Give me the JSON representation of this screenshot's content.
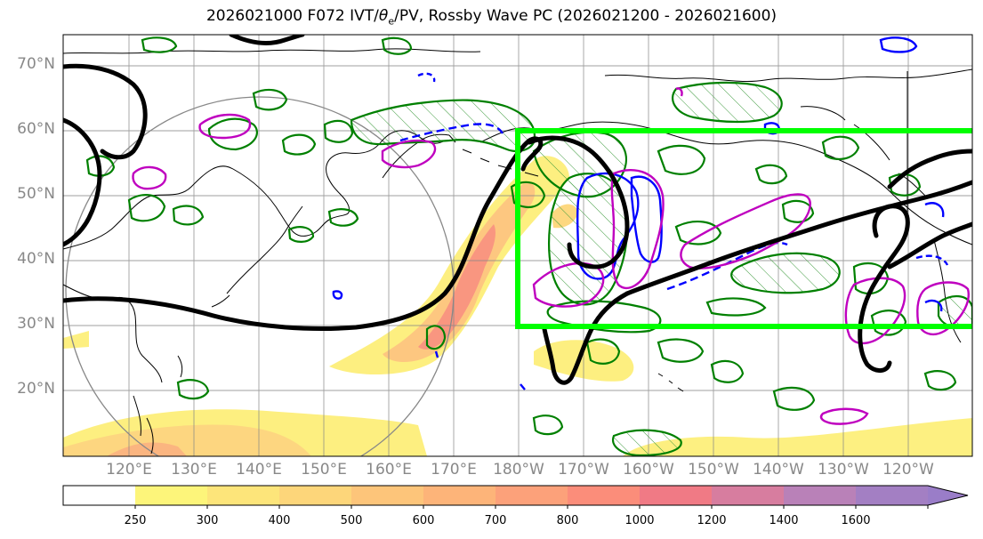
{
  "title": {
    "prefix": "2026021000 F072 IVT/",
    "theta": "θ",
    "theta_sub": "e",
    "suffix": "/PV, Rossby Wave PC (2026021200 - 2026021600)"
  },
  "lat_labels": [
    "70°N",
    "60°N",
    "50°N",
    "40°N",
    "30°N",
    "20°N"
  ],
  "lon_labels": [
    "120°E",
    "130°E",
    "140°E",
    "150°E",
    "160°E",
    "170°E",
    "180°W",
    "170°W",
    "160°W",
    "150°W",
    "140°W",
    "130°W",
    "120°W"
  ],
  "colorbar": {
    "ticks": [
      "250",
      "300",
      "400",
      "500",
      "600",
      "700",
      "800",
      "1000",
      "1200",
      "1400",
      "1600"
    ],
    "colors": [
      "#ffffff",
      "#fdf57a",
      "#fde57a",
      "#fdd67a",
      "#fdc57a",
      "#fdb479",
      "#fca17a",
      "#fb8d7a",
      "#f07a85",
      "#d77d9f",
      "#b981b8",
      "#a37fc3",
      "#9a7dc8"
    ]
  },
  "colors": {
    "rossby_box": "#00ff00",
    "pv_contour": "#000000",
    "theta_e_contour": "#008000",
    "blue_contour": "#0000ff",
    "magenta_contour": "#bf00bf"
  }
}
